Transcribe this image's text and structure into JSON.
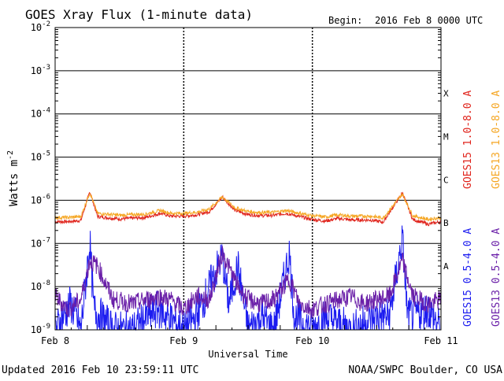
{
  "chart_data": {
    "type": "line",
    "title": "GOES Xray Flux (1-minute data)",
    "begin_label": "Begin:",
    "begin_value": "2016 Feb 8 0000 UTC",
    "ylabel": "Watts m",
    "ylabel_exp": "-2",
    "xlabel": "Universal Time",
    "yscale": "log",
    "ylim": [
      1e-09,
      0.01
    ],
    "y_ticks": [
      {
        "base": "10",
        "exp": "-2",
        "value": 0.01
      },
      {
        "base": "10",
        "exp": "-3",
        "value": 0.001
      },
      {
        "base": "10",
        "exp": "-4",
        "value": 0.0001
      },
      {
        "base": "10",
        "exp": "-5",
        "value": 1e-05
      },
      {
        "base": "10",
        "exp": "-6",
        "value": 1e-06
      },
      {
        "base": "10",
        "exp": "-7",
        "value": 1e-07
      },
      {
        "base": "10",
        "exp": "-8",
        "value": 1e-08
      },
      {
        "base": "10",
        "exp": "-9",
        "value": 1e-09
      }
    ],
    "x_unit": "days since 2016 Feb 8 0000 UTC",
    "xlim": [
      0,
      3
    ],
    "x_ticks": [
      {
        "label": "Feb 8",
        "value": 0
      },
      {
        "label": "Feb 9",
        "value": 1
      },
      {
        "label": "Feb 10",
        "value": 2
      },
      {
        "label": "Feb 11",
        "value": 3
      }
    ],
    "flare_classes": [
      {
        "label": "X",
        "value": 0.0003
      },
      {
        "label": "M",
        "value": 3e-05
      },
      {
        "label": "C",
        "value": 3e-06
      },
      {
        "label": "B",
        "value": 3e-07
      },
      {
        "label": "A",
        "value": 3e-08
      }
    ],
    "series": [
      {
        "name": "GOES15 1.0-8.0 A",
        "color": "#e0241c",
        "points": [
          [
            0,
            3.2e-07
          ],
          [
            0.1,
            3.2e-07
          ],
          [
            0.2,
            3.4e-07
          ],
          [
            0.27,
            1.6e-06
          ],
          [
            0.33,
            4.2e-07
          ],
          [
            0.5,
            3.7e-07
          ],
          [
            0.7,
            4e-07
          ],
          [
            0.82,
            5e-07
          ],
          [
            0.9,
            4.3e-07
          ],
          [
            1.0,
            4.3e-07
          ],
          [
            1.1,
            4.6e-07
          ],
          [
            1.2,
            5.5e-07
          ],
          [
            1.3,
            1.2e-06
          ],
          [
            1.4,
            5.8e-07
          ],
          [
            1.5,
            4.7e-07
          ],
          [
            1.6,
            4.4e-07
          ],
          [
            1.7,
            4.5e-07
          ],
          [
            1.8,
            5e-07
          ],
          [
            1.9,
            4.2e-07
          ],
          [
            2.0,
            3.6e-07
          ],
          [
            2.1,
            3.3e-07
          ],
          [
            2.2,
            3.8e-07
          ],
          [
            2.3,
            3.5e-07
          ],
          [
            2.45,
            3.5e-07
          ],
          [
            2.55,
            3.1e-07
          ],
          [
            2.7,
            1.5e-06
          ],
          [
            2.78,
            3.6e-07
          ],
          [
            2.9,
            2.8e-07
          ],
          [
            3.0,
            3.2e-07
          ]
        ]
      },
      {
        "name": "GOES13 1.0-8.0 A",
        "color": "#f5a623",
        "points": [
          [
            0,
            4e-07
          ],
          [
            0.1,
            4e-07
          ],
          [
            0.2,
            4.2e-07
          ],
          [
            0.27,
            1.5e-06
          ],
          [
            0.33,
            5e-07
          ],
          [
            0.5,
            4.5e-07
          ],
          [
            0.7,
            4.8e-07
          ],
          [
            0.82,
            5.8e-07
          ],
          [
            0.9,
            5e-07
          ],
          [
            1.0,
            5e-07
          ],
          [
            1.1,
            5.3e-07
          ],
          [
            1.2,
            6.3e-07
          ],
          [
            1.3,
            1.2e-06
          ],
          [
            1.4,
            6.6e-07
          ],
          [
            1.5,
            5.5e-07
          ],
          [
            1.6,
            5.2e-07
          ],
          [
            1.7,
            5.3e-07
          ],
          [
            1.8,
            5.8e-07
          ],
          [
            1.9,
            5e-07
          ],
          [
            2.0,
            4.4e-07
          ],
          [
            2.1,
            4.1e-07
          ],
          [
            2.2,
            4.6e-07
          ],
          [
            2.3,
            4.3e-07
          ],
          [
            2.45,
            4.3e-07
          ],
          [
            2.55,
            3.9e-07
          ],
          [
            2.7,
            1.4e-06
          ],
          [
            2.78,
            4.4e-07
          ],
          [
            2.9,
            3.6e-07
          ],
          [
            3.0,
            4e-07
          ]
        ]
      },
      {
        "name": "GOES15 0.5-4.0 A",
        "color": "#1c1cf0",
        "points": [
          [
            0,
            1e-09
          ],
          [
            0.12,
            4e-09
          ],
          [
            0.2,
            1e-09
          ],
          [
            0.27,
            1.1e-07
          ],
          [
            0.3,
            3e-09
          ],
          [
            0.45,
            1e-09
          ],
          [
            0.6,
            1e-09
          ],
          [
            0.8,
            3e-09
          ],
          [
            1.0,
            1e-09
          ],
          [
            1.1,
            2e-09
          ],
          [
            1.3,
            5e-08
          ],
          [
            1.35,
            4e-09
          ],
          [
            1.42,
            3e-08
          ],
          [
            1.5,
            1e-09
          ],
          [
            1.6,
            2e-09
          ],
          [
            1.7,
            1e-09
          ],
          [
            1.82,
            6e-08
          ],
          [
            1.86,
            2e-09
          ],
          [
            2.0,
            1e-09
          ],
          [
            2.1,
            2e-09
          ],
          [
            2.3,
            1e-09
          ],
          [
            2.5,
            2e-09
          ],
          [
            2.6,
            2e-09
          ],
          [
            2.7,
            1.3e-07
          ],
          [
            2.74,
            2e-09
          ],
          [
            2.9,
            3e-09
          ],
          [
            3.0,
            1e-09
          ]
        ]
      },
      {
        "name": "GOES13 0.5-4.0 A",
        "color": "#6a1fa8",
        "points": [
          [
            0,
            6e-09
          ],
          [
            0.1,
            3e-09
          ],
          [
            0.2,
            5e-09
          ],
          [
            0.27,
            4e-08
          ],
          [
            0.33,
            3e-08
          ],
          [
            0.45,
            5e-09
          ],
          [
            0.6,
            4e-09
          ],
          [
            0.8,
            6e-09
          ],
          [
            0.9,
            5e-09
          ],
          [
            1.0,
            3e-09
          ],
          [
            1.1,
            6e-09
          ],
          [
            1.2,
            5e-09
          ],
          [
            1.3,
            6e-08
          ],
          [
            1.42,
            1e-08
          ],
          [
            1.5,
            5e-09
          ],
          [
            1.6,
            4e-09
          ],
          [
            1.7,
            5e-09
          ],
          [
            1.82,
            1.5e-08
          ],
          [
            1.9,
            4e-09
          ],
          [
            2.0,
            3e-09
          ],
          [
            2.1,
            4e-09
          ],
          [
            2.3,
            6e-09
          ],
          [
            2.4,
            4e-09
          ],
          [
            2.5,
            5e-09
          ],
          [
            2.6,
            6e-09
          ],
          [
            2.7,
            4e-08
          ],
          [
            2.78,
            6e-09
          ],
          [
            2.9,
            4e-09
          ],
          [
            3.0,
            5e-09
          ]
        ]
      }
    ],
    "grid": true,
    "legend_placement": "right, vertical"
  },
  "footer": {
    "updated": "Updated 2016 Feb 10 23:59:11 UTC",
    "credit": "NOAA/SWPC Boulder, CO USA"
  }
}
